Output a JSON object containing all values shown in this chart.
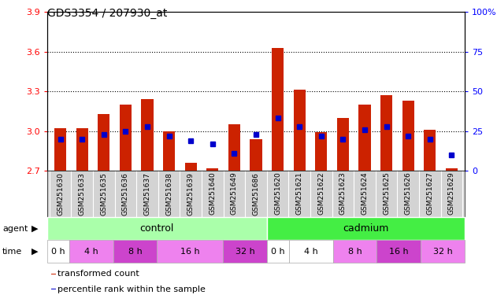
{
  "title": "GDS3354 / 207930_at",
  "samples": [
    "GSM251630",
    "GSM251633",
    "GSM251635",
    "GSM251636",
    "GSM251637",
    "GSM251638",
    "GSM251639",
    "GSM251640",
    "GSM251649",
    "GSM251686",
    "GSM251620",
    "GSM251621",
    "GSM251622",
    "GSM251623",
    "GSM251624",
    "GSM251625",
    "GSM251626",
    "GSM251627",
    "GSM251629"
  ],
  "red_values": [
    3.02,
    3.02,
    3.13,
    3.2,
    3.24,
    3.0,
    2.76,
    2.72,
    3.05,
    2.94,
    3.63,
    3.31,
    2.99,
    3.1,
    3.2,
    3.27,
    3.23,
    3.01,
    2.72
  ],
  "blue_values": [
    20,
    20,
    23,
    25,
    28,
    22,
    19,
    17,
    11,
    23,
    33,
    28,
    22,
    20,
    26,
    28,
    22,
    20,
    10
  ],
  "ylim_left": [
    2.7,
    3.9
  ],
  "ylim_right": [
    0,
    100
  ],
  "yticks_left": [
    2.7,
    3.0,
    3.3,
    3.6,
    3.9
  ],
  "yticks_right": [
    0,
    25,
    50,
    75,
    100
  ],
  "hlines": [
    3.0,
    3.3,
    3.6
  ],
  "bar_color_red": "#CC2200",
  "bar_color_blue": "#0000CC",
  "bar_width": 0.55,
  "baseline": 2.7,
  "agent_control_color": "#AAFFAA",
  "agent_cadmium_color": "#44EE44",
  "time_blocks": [
    {
      "label": "0 h",
      "start": 0,
      "end": 0,
      "color": "#FFFFFF"
    },
    {
      "label": "4 h",
      "start": 1,
      "end": 2,
      "color": "#EE82EE"
    },
    {
      "label": "8 h",
      "start": 3,
      "end": 4,
      "color": "#CC44CC"
    },
    {
      "label": "16 h",
      "start": 5,
      "end": 7,
      "color": "#EE82EE"
    },
    {
      "label": "32 h",
      "start": 8,
      "end": 9,
      "color": "#CC44CC"
    },
    {
      "label": "0 h",
      "start": 10,
      "end": 10,
      "color": "#FFFFFF"
    },
    {
      "label": "4 h",
      "start": 11,
      "end": 12,
      "color": "#FFFFFF"
    },
    {
      "label": "8 h",
      "start": 13,
      "end": 14,
      "color": "#EE82EE"
    },
    {
      "label": "16 h",
      "start": 15,
      "end": 16,
      "color": "#CC44CC"
    },
    {
      "label": "32 h",
      "start": 17,
      "end": 18,
      "color": "#EE82EE"
    }
  ],
  "legend_items": [
    {
      "label": "transformed count",
      "color": "#CC2200"
    },
    {
      "label": "percentile rank within the sample",
      "color": "#0000CC"
    }
  ]
}
